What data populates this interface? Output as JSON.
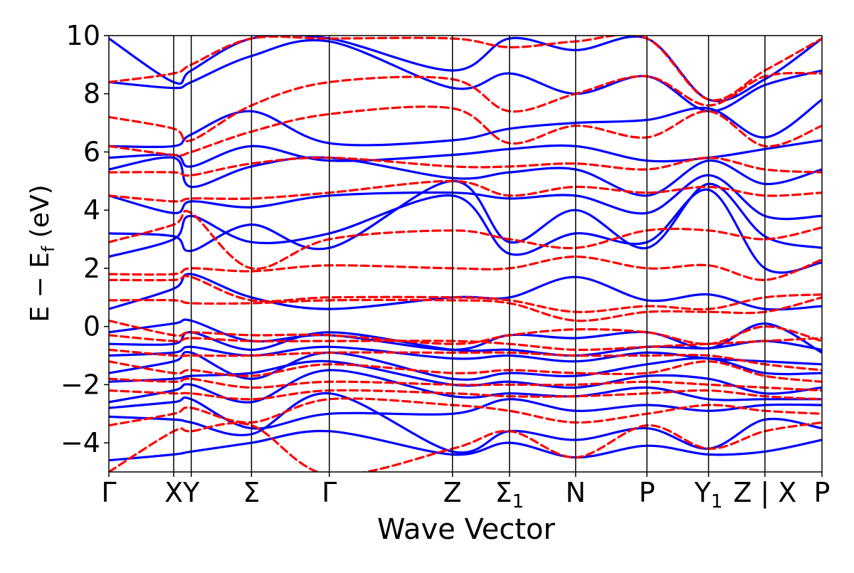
{
  "chart_data": {
    "type": "line",
    "title": "",
    "xlabel": "Wave Vector",
    "ylabel": "E − E",
    "ylabel_sub": "f",
    "ylabel_unit": " (eV)",
    "ylim": [
      -5,
      10
    ],
    "yticks": [
      {
        "value": 10,
        "label": "10"
      },
      {
        "value": 8,
        "label": "8"
      },
      {
        "value": 6,
        "label": "6"
      },
      {
        "value": 4,
        "label": "4"
      },
      {
        "value": 2,
        "label": "2"
      },
      {
        "value": 0,
        "label": "0"
      },
      {
        "value": -2,
        "label": "−2"
      },
      {
        "value": -4,
        "label": "−4"
      }
    ],
    "xlim": [
      0,
      11
    ],
    "kpoints": [
      {
        "pos": 0,
        "label": "Γ",
        "sub": ""
      },
      {
        "pos": 1,
        "label": "X",
        "sub": ""
      },
      {
        "pos": 1.27,
        "label": "Y",
        "sub": ""
      },
      {
        "pos": 2.2,
        "label": "Σ",
        "sub": ""
      },
      {
        "pos": 3.4,
        "label": "Γ",
        "sub": ""
      },
      {
        "pos": 5.3,
        "label": "Z",
        "sub": ""
      },
      {
        "pos": 6.18,
        "label": "Σ",
        "sub": "1"
      },
      {
        "pos": 7.2,
        "label": "N",
        "sub": ""
      },
      {
        "pos": 8.3,
        "label": "P",
        "sub": ""
      },
      {
        "pos": 9.25,
        "label": "Y",
        "sub": "1"
      },
      {
        "pos": 10.12,
        "label": "Z | X",
        "sub": ""
      },
      {
        "pos": 11,
        "label": "P",
        "sub": ""
      }
    ],
    "grid": false,
    "legend": "none",
    "series": [
      {
        "style": "solid",
        "color": "#0000ff",
        "x": [
          0,
          1,
          1.27,
          2.2,
          3.4,
          5.3,
          6.18,
          7.2,
          8.3,
          9.25,
          10.12,
          11
        ],
        "bands": [
          [
            -4.6,
            -4.4,
            -4.3,
            -4.0,
            -3.6,
            -4.4,
            -4.0,
            -4.5,
            -4.1,
            -4.4,
            -4.3,
            -3.9
          ],
          [
            -3.1,
            -3.2,
            -3.3,
            -3.7,
            -2.3,
            -4.3,
            -3.6,
            -3.9,
            -3.5,
            -4.2,
            -3.2,
            -3.5
          ],
          [
            -2.8,
            -2.6,
            -2.5,
            -3.5,
            -3.0,
            -3.0,
            -2.5,
            -2.9,
            -2.7,
            -2.9,
            -2.7,
            -2.7
          ],
          [
            -2.6,
            -2.2,
            -2.0,
            -2.6,
            -1.5,
            -2.4,
            -2.3,
            -2.4,
            -2.1,
            -2.5,
            -2.5,
            -2.5
          ],
          [
            -1.9,
            -1.8,
            -1.7,
            -1.6,
            -1.2,
            -2.0,
            -1.9,
            -2.1,
            -1.7,
            -1.8,
            -2.3,
            -2.1
          ],
          [
            -1.6,
            -1.2,
            -0.9,
            -1.8,
            -0.9,
            -1.8,
            -1.6,
            -1.7,
            -1.3,
            -1.1,
            -1.6,
            -1.6
          ],
          [
            -1.0,
            -0.9,
            -0.7,
            -1.0,
            -0.7,
            -1.1,
            -1.0,
            -1.2,
            -0.9,
            -1.1,
            -1.2,
            -1.3
          ],
          [
            -0.6,
            -0.6,
            -0.2,
            -0.8,
            -0.2,
            -0.8,
            -0.8,
            -1.0,
            -0.7,
            -0.75,
            -0.5,
            -0.8
          ],
          [
            -0.2,
            0.1,
            0.2,
            -0.5,
            -0.3,
            -0.8,
            -0.3,
            -0.4,
            -0.2,
            -0.75,
            0.1,
            -0.9
          ],
          [
            0.6,
            1.3,
            1.8,
            1.0,
            0.6,
            1.0,
            1.0,
            1.7,
            0.9,
            1.1,
            0.6,
            0.7
          ],
          [
            2.4,
            3.0,
            3.8,
            2.9,
            3.2,
            4.5,
            2.5,
            3.2,
            2.9,
            4.7,
            2.0,
            2.2
          ],
          [
            3.2,
            3.1,
            2.6,
            3.5,
            2.7,
            5.0,
            2.9,
            4.0,
            2.7,
            4.9,
            3.1,
            2.7
          ],
          [
            4.5,
            3.9,
            4.3,
            4.1,
            4.5,
            4.6,
            4.4,
            4.5,
            3.9,
            5.2,
            3.8,
            3.8
          ],
          [
            5.4,
            5.8,
            4.8,
            5.5,
            5.8,
            5.1,
            5.3,
            5.4,
            4.5,
            5.7,
            4.9,
            5.4
          ],
          [
            5.8,
            5.9,
            5.5,
            6.2,
            5.7,
            5.9,
            6.1,
            6.2,
            5.7,
            5.8,
            6.1,
            6.4
          ],
          [
            6.2,
            6.2,
            6.6,
            7.4,
            6.3,
            6.4,
            6.8,
            7.0,
            7.1,
            7.5,
            6.5,
            7.8
          ],
          [
            8.4,
            8.2,
            8.4,
            9.3,
            9.8,
            8.2,
            8.7,
            8.0,
            8.6,
            7.4,
            8.3,
            8.8
          ],
          [
            9.9,
            8.4,
            8.8,
            9.9,
            9.9,
            8.8,
            9.9,
            9.5,
            9.9,
            7.8,
            8.5,
            9.9
          ]
        ]
      },
      {
        "style": "dashed",
        "color": "#ff0000",
        "x": [
          0,
          1,
          1.27,
          2.2,
          3.4,
          5.3,
          6.18,
          7.2,
          8.3,
          9.25,
          10.12,
          11
        ],
        "bands": [
          [
            -5.0,
            -3.6,
            -3.6,
            -3.4,
            -5.1,
            -4.2,
            -3.6,
            -4.5,
            -3.4,
            -4.2,
            -3.6,
            -3.3
          ],
          [
            -3.4,
            -3.0,
            -2.8,
            -3.3,
            -2.5,
            -2.7,
            -2.9,
            -3.3,
            -3.0,
            -2.7,
            -2.9,
            -3.0
          ],
          [
            -2.2,
            -2.3,
            -2.3,
            -2.5,
            -2.2,
            -2.3,
            -2.4,
            -2.4,
            -2.3,
            -2.2,
            -2.4,
            -2.5
          ],
          [
            -1.8,
            -1.9,
            -1.8,
            -2.1,
            -1.9,
            -2.0,
            -2.0,
            -2.0,
            -1.9,
            -2.0,
            -2.1,
            -2.2
          ],
          [
            -1.2,
            -1.6,
            -1.5,
            -1.7,
            -1.3,
            -1.6,
            -1.5,
            -1.6,
            -1.6,
            -1.2,
            -1.7,
            -1.9
          ],
          [
            -0.8,
            -1.0,
            -1.0,
            -1.0,
            -0.9,
            -0.9,
            -0.9,
            -1.0,
            -1.0,
            -1.0,
            -1.3,
            -1.5
          ],
          [
            -0.3,
            -0.5,
            -0.4,
            -0.5,
            -0.5,
            -0.5,
            -0.6,
            -0.8,
            -0.7,
            -0.6,
            -0.5,
            -0.4
          ],
          [
            0.2,
            -0.3,
            -0.2,
            -0.3,
            -0.3,
            -0.6,
            -0.3,
            -0.1,
            -0.2,
            -0.6,
            0.0,
            -0.5
          ],
          [
            0.9,
            0.9,
            0.8,
            0.8,
            0.9,
            0.9,
            0.8,
            0.2,
            0.5,
            0.5,
            0.5,
            1.0
          ],
          [
            1.6,
            1.6,
            1.7,
            0.9,
            1.0,
            1.0,
            0.9,
            0.5,
            0.7,
            0.6,
            1.0,
            1.1
          ],
          [
            1.8,
            1.8,
            2.0,
            1.9,
            2.1,
            2.0,
            2.0,
            2.4,
            2.0,
            2.1,
            1.6,
            2.3
          ],
          [
            2.9,
            3.5,
            3.9,
            2.0,
            3.0,
            3.3,
            3.0,
            2.7,
            3.3,
            3.3,
            3.0,
            3.4
          ],
          [
            4.5,
            4.3,
            4.4,
            4.4,
            4.6,
            5.0,
            4.5,
            4.8,
            4.6,
            4.8,
            4.5,
            4.6
          ],
          [
            5.3,
            5.3,
            5.2,
            5.6,
            5.8,
            5.5,
            5.5,
            5.6,
            5.4,
            5.8,
            5.4,
            5.3
          ],
          [
            6.2,
            5.9,
            6.0,
            6.7,
            7.3,
            7.5,
            6.3,
            6.9,
            6.5,
            7.4,
            6.2,
            6.9
          ],
          [
            7.2,
            6.8,
            6.4,
            7.6,
            8.4,
            8.5,
            7.4,
            8.0,
            8.6,
            7.6,
            8.6,
            8.7
          ],
          [
            8.4,
            8.7,
            9.0,
            9.9,
            9.9,
            9.9,
            9.6,
            9.8,
            9.9,
            7.8,
            8.8,
            9.9
          ]
        ]
      }
    ]
  }
}
